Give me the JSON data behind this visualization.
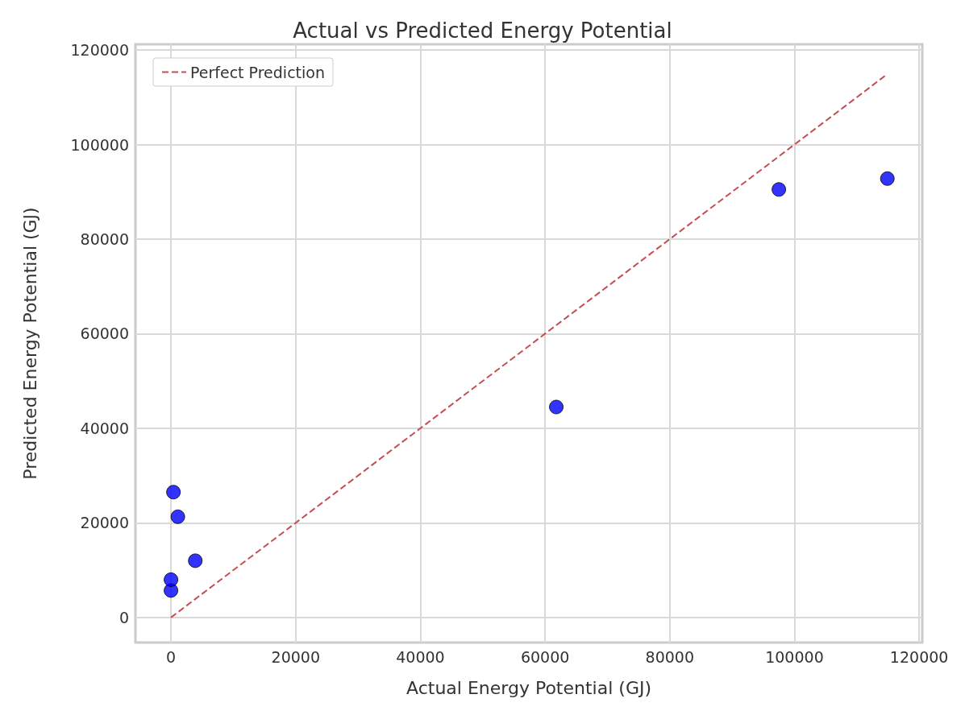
{
  "chart_data": {
    "type": "scatter",
    "title": "Actual vs Predicted Energy Potential",
    "xlabel": "Actual Energy Potential (GJ)",
    "ylabel": "Predicted Energy Potential (GJ)",
    "xlim": [
      -5700,
      120500
    ],
    "ylim": [
      -5300,
      121200
    ],
    "xticks": [
      0,
      20000,
      40000,
      60000,
      80000,
      100000,
      120000
    ],
    "yticks": [
      0,
      20000,
      40000,
      60000,
      80000,
      100000,
      120000
    ],
    "grid": true,
    "legend": "top left",
    "series": [
      {
        "color": "#0000ff",
        "marker": "circle",
        "x": [
          0,
          0,
          400,
          1100,
          3900,
          61800,
          97500,
          114900
        ],
        "values": [
          5700,
          8000,
          26500,
          21300,
          12000,
          44500,
          90500,
          92800
        ]
      },
      {
        "type": "line",
        "name": "Perfect Prediction",
        "color": "#c44e52",
        "line_style": "dashed",
        "marker": "none",
        "x": [
          0,
          114900
        ],
        "values": [
          0,
          114900
        ]
      }
    ]
  }
}
